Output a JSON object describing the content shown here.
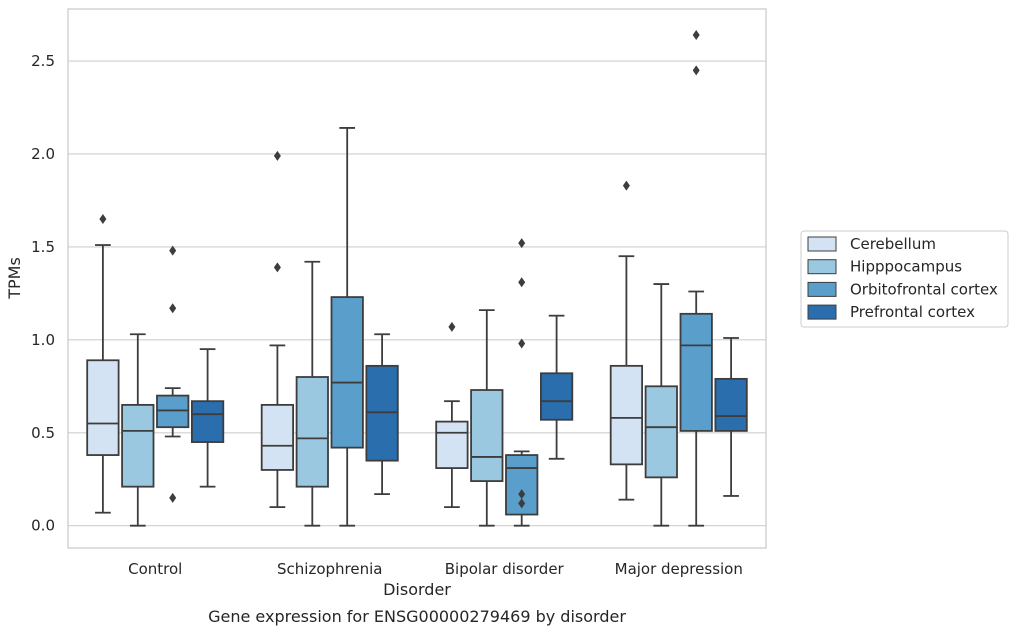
{
  "chart_data": {
    "type": "box",
    "title": "",
    "caption": "Gene expression for ENSG00000279469 by disorder",
    "xlabel": "Disorder",
    "ylabel": "TPMs",
    "categories": [
      "Control",
      "Schizophrenia",
      "Bipolar disorder",
      "Major depression"
    ],
    "ylim": [
      -0.12,
      2.78
    ],
    "yticks": [
      0.0,
      0.5,
      1.0,
      1.5,
      2.0,
      2.5
    ],
    "ytick_labels": [
      "0.0",
      "0.5",
      "1.0",
      "1.5",
      "2.0",
      "2.5"
    ],
    "grid": "horizontal",
    "legend_position": "right",
    "series": [
      {
        "name": "Cerebellum",
        "color": "#d3e3f3",
        "boxes": [
          {
            "whisker_low": 0.07,
            "q1": 0.38,
            "median": 0.55,
            "q3": 0.89,
            "whisker_high": 1.51,
            "outliers": [
              1.65
            ]
          },
          {
            "whisker_low": 0.1,
            "q1": 0.3,
            "median": 0.43,
            "q3": 0.65,
            "whisker_high": 0.97,
            "outliers": [
              1.39,
              1.99
            ]
          },
          {
            "whisker_low": 0.1,
            "q1": 0.31,
            "median": 0.5,
            "q3": 0.56,
            "whisker_high": 0.67,
            "outliers": [
              1.07
            ]
          },
          {
            "whisker_low": 0.14,
            "q1": 0.33,
            "median": 0.58,
            "q3": 0.86,
            "whisker_high": 1.45,
            "outliers": [
              1.83
            ]
          }
        ]
      },
      {
        "name": "Hipppocampus",
        "color": "#9ac8e0",
        "boxes": [
          {
            "whisker_low": 0.0,
            "q1": 0.21,
            "median": 0.51,
            "q3": 0.65,
            "whisker_high": 1.03,
            "outliers": []
          },
          {
            "whisker_low": 0.0,
            "q1": 0.21,
            "median": 0.47,
            "q3": 0.8,
            "whisker_high": 1.42,
            "outliers": []
          },
          {
            "whisker_low": 0.0,
            "q1": 0.24,
            "median": 0.37,
            "q3": 0.73,
            "whisker_high": 1.16,
            "outliers": []
          },
          {
            "whisker_low": 0.0,
            "q1": 0.26,
            "median": 0.53,
            "q3": 0.75,
            "whisker_high": 1.3,
            "outliers": []
          }
        ]
      },
      {
        "name": "Orbitofrontal cortex",
        "color": "#5a9ecb",
        "boxes": [
          {
            "whisker_low": 0.48,
            "q1": 0.53,
            "median": 0.62,
            "q3": 0.7,
            "whisker_high": 0.74,
            "outliers": [
              0.15,
              1.17,
              1.48
            ]
          },
          {
            "whisker_low": 0.0,
            "q1": 0.42,
            "median": 0.77,
            "q3": 1.23,
            "whisker_high": 2.14,
            "outliers": []
          },
          {
            "whisker_low": 0.0,
            "q1": 0.06,
            "median": 0.31,
            "q3": 0.38,
            "whisker_high": 0.4,
            "outliers": [
              0.12,
              0.17,
              0.98,
              1.31,
              1.52
            ]
          },
          {
            "whisker_low": 0.0,
            "q1": 0.51,
            "median": 0.97,
            "q3": 1.14,
            "whisker_high": 1.26,
            "outliers": [
              2.45,
              2.64
            ]
          }
        ]
      },
      {
        "name": "Prefrontal cortex",
        "color": "#2a6eae",
        "boxes": [
          {
            "whisker_low": 0.21,
            "q1": 0.45,
            "median": 0.6,
            "q3": 0.67,
            "whisker_high": 0.95,
            "outliers": []
          },
          {
            "whisker_low": 0.17,
            "q1": 0.35,
            "median": 0.61,
            "q3": 0.86,
            "whisker_high": 1.03,
            "outliers": []
          },
          {
            "whisker_low": 0.36,
            "q1": 0.57,
            "median": 0.67,
            "q3": 0.82,
            "whisker_high": 1.13,
            "outliers": []
          },
          {
            "whisker_low": 0.16,
            "q1": 0.51,
            "median": 0.59,
            "q3": 0.79,
            "whisker_high": 1.01,
            "outliers": []
          }
        ]
      }
    ]
  },
  "colors": {
    "grid": "#cfcfcf",
    "frame": "#cccccc",
    "line": "#3d3d3d"
  }
}
